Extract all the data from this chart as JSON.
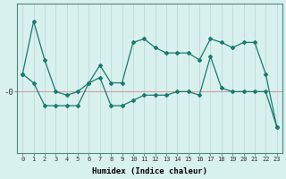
{
  "xlabel": "Humidex (Indice chaleur)",
  "background_color": "#d8f0ee",
  "line_color": "#1a7a6e",
  "grid_color": "#c0dedd",
  "hline_color": "#d0a0a0",
  "x_values": [
    0,
    1,
    2,
    3,
    4,
    5,
    6,
    7,
    8,
    9,
    10,
    11,
    12,
    13,
    14,
    15,
    16,
    17,
    18,
    19,
    20,
    21,
    22,
    23
  ],
  "line1_y": [
    4.0,
    1.0,
    3.2,
    5.0,
    5.2,
    5.0,
    4.5,
    3.5,
    4.5,
    4.5,
    2.2,
    2.0,
    2.5,
    2.8,
    2.8,
    2.8,
    3.2,
    2.0,
    2.2,
    2.5,
    2.2,
    2.2,
    4.0,
    7.0
  ],
  "line2_y": [
    4.0,
    4.5,
    5.8,
    5.8,
    5.8,
    5.8,
    4.5,
    4.2,
    5.8,
    5.8,
    5.5,
    5.2,
    5.2,
    5.2,
    5.0,
    5.0,
    5.2,
    3.0,
    4.8,
    5.0,
    5.0,
    5.0,
    5.0,
    7.0
  ],
  "ytick_label": "-0",
  "ytick_pos": 5.0,
  "xlim": [
    -0.5,
    23.5
  ],
  "ylim": [
    8.5,
    0.0
  ],
  "figsize": [
    3.2,
    2.0
  ],
  "dpi": 100
}
